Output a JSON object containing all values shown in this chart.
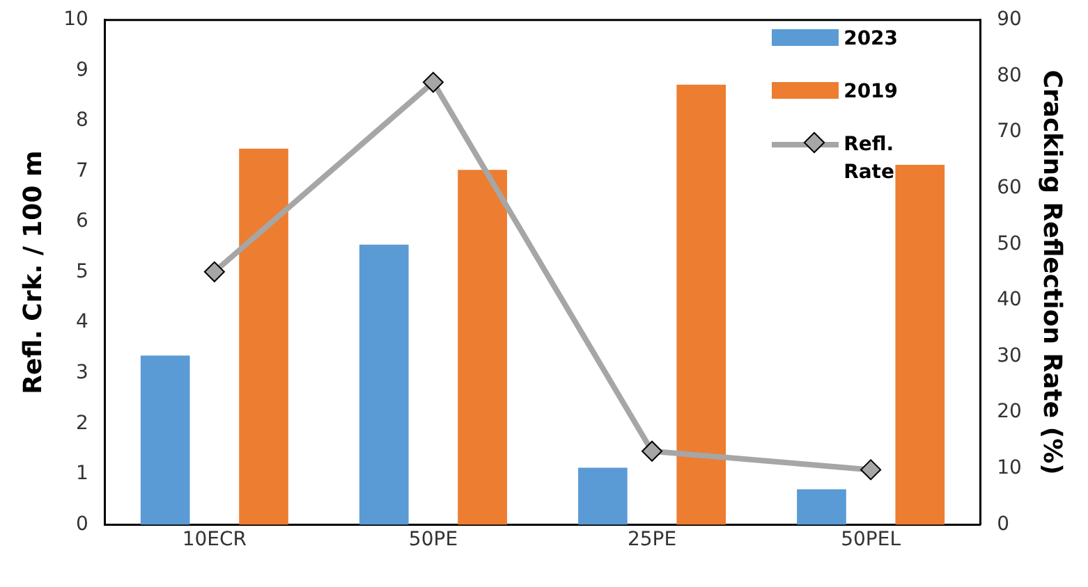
{
  "chart_data": {
    "type": "bar",
    "ylabel": "Refl. Crk. / 100 m",
    "y2label": "Cracking Reflection Rate (%)",
    "categories": [
      "10ECR",
      "50PE",
      "25PE",
      "50PEL"
    ],
    "series": [
      {
        "name": "2023",
        "color": "#5b9bd5",
        "values": [
          3.35,
          5.55,
          1.13,
          0.7
        ]
      },
      {
        "name": "2019",
        "color": "#ed7d31",
        "values": [
          7.45,
          7.03,
          8.72,
          7.13
        ]
      },
      {
        "name": "Refl. Rate",
        "type": "line",
        "axis": "y2",
        "color": "#a6a6a6",
        "marker": "diamond",
        "values": [
          45.1,
          78.9,
          13.1,
          9.8
        ]
      }
    ],
    "ylim": [
      0,
      10
    ],
    "yticks": [
      0,
      1,
      2,
      3,
      4,
      5,
      6,
      7,
      8,
      9,
      10
    ],
    "y2lim": [
      0,
      90
    ],
    "y2ticks": [
      0,
      10,
      20,
      30,
      40,
      50,
      60,
      70,
      80,
      90
    ],
    "grid": false,
    "legend": "top right"
  }
}
